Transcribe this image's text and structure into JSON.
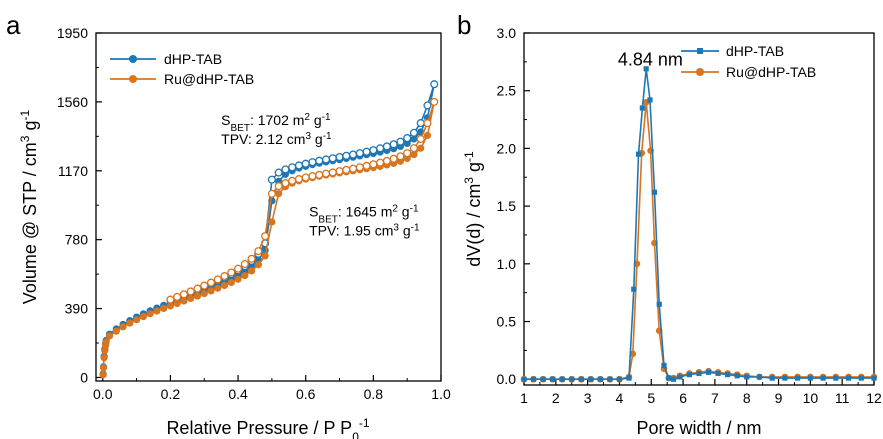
{
  "chart_data": [
    {
      "type": "line",
      "panel_label": "a",
      "xlabel": "Relative Pressure / P P",
      "xlabel_sub": "0",
      "xlabel_sup": "-1",
      "ylabel": "Volume @ STP / cm",
      "ylabel_sup1": "3",
      "ylabel_mid": " g",
      "ylabel_sup2": "-1",
      "xlim": [
        -0.02,
        1.0
      ],
      "ylim": [
        -20,
        1950
      ],
      "xticks": [
        0.0,
        0.2,
        0.4,
        0.6,
        0.8,
        1.0
      ],
      "xtick_labels": [
        "0.0",
        "0.2",
        "0.4",
        "0.6",
        "0.8",
        "1.0"
      ],
      "yticks": [
        0,
        390,
        780,
        1170,
        1560,
        1950
      ],
      "ytick_labels": [
        "0",
        "390",
        "780",
        "1170",
        "1560",
        "1950"
      ],
      "legend": {
        "placement": "top-left",
        "entries": [
          "dHP-TAB",
          "Ru@dHP-TAB"
        ]
      },
      "annotations": [
        {
          "lines": [
            "S|BET|: 1702 m|2| g|-1|",
            "TPV: 2.12 cm|3| g|-1|"
          ],
          "at": [
            0.35,
            1430
          ]
        },
        {
          "lines": [
            "S|BET|: 1645 m|2| g|-1|",
            "TPV: 1.95 cm|3| g|-1|"
          ],
          "at": [
            0.61,
            910
          ]
        }
      ],
      "series": [
        {
          "name": "dHP-TAB",
          "color": "#1f77b4",
          "adsorption": {
            "x": [
              0.001,
              0.002,
              0.004,
              0.006,
              0.008,
              0.01,
              0.02,
              0.04,
              0.06,
              0.08,
              0.1,
              0.12,
              0.14,
              0.16,
              0.18,
              0.2,
              0.22,
              0.24,
              0.26,
              0.28,
              0.3,
              0.32,
              0.34,
              0.36,
              0.38,
              0.4,
              0.42,
              0.44,
              0.46,
              0.48,
              0.5,
              0.52,
              0.54,
              0.56,
              0.58,
              0.6,
              0.62,
              0.64,
              0.66,
              0.68,
              0.7,
              0.72,
              0.74,
              0.76,
              0.78,
              0.8,
              0.82,
              0.84,
              0.86,
              0.88,
              0.9,
              0.92,
              0.94,
              0.96,
              0.98
            ],
            "y": [
              20,
              60,
              120,
              160,
              190,
              210,
              245,
              275,
              300,
              322,
              342,
              360,
              377,
              393,
              408,
              423,
              438,
              452,
              466,
              480,
              495,
              510,
              526,
              543,
              561,
              580,
              602,
              630,
              668,
              720,
              1000,
              1110,
              1150,
              1170,
              1185,
              1195,
              1205,
              1213,
              1220,
              1227,
              1233,
              1240,
              1247,
              1254,
              1261,
              1268,
              1276,
              1285,
              1295,
              1308,
              1325,
              1350,
              1390,
              1470,
              1660
            ]
          },
          "desorption": {
            "x": [
              0.98,
              0.96,
              0.94,
              0.92,
              0.9,
              0.88,
              0.86,
              0.84,
              0.82,
              0.8,
              0.78,
              0.76,
              0.74,
              0.72,
              0.7,
              0.68,
              0.66,
              0.64,
              0.62,
              0.6,
              0.58,
              0.56,
              0.54,
              0.52,
              0.5,
              0.48,
              0.46,
              0.44,
              0.42,
              0.4,
              0.38,
              0.36,
              0.34,
              0.32,
              0.3,
              0.28,
              0.26,
              0.24,
              0.22,
              0.2
            ],
            "y": [
              1660,
              1540,
              1440,
              1385,
              1355,
              1335,
              1320,
              1308,
              1297,
              1287,
              1278,
              1270,
              1262,
              1255,
              1248,
              1241,
              1234,
              1227,
              1219,
              1210,
              1200,
              1190,
              1178,
              1160,
              1120,
              760,
              700,
              660,
              630,
              606,
              585,
              566,
              548,
              531,
              515,
              499,
              484,
              469,
              454,
              440
            ]
          }
        },
        {
          "name": "Ru@dHP-TAB",
          "color": "#d9741f",
          "adsorption": {
            "x": [
              0.001,
              0.002,
              0.004,
              0.006,
              0.008,
              0.01,
              0.02,
              0.04,
              0.06,
              0.08,
              0.1,
              0.12,
              0.14,
              0.16,
              0.18,
              0.2,
              0.22,
              0.24,
              0.26,
              0.28,
              0.3,
              0.32,
              0.34,
              0.36,
              0.38,
              0.4,
              0.42,
              0.44,
              0.46,
              0.48,
              0.5,
              0.52,
              0.54,
              0.56,
              0.58,
              0.6,
              0.62,
              0.64,
              0.66,
              0.68,
              0.7,
              0.72,
              0.74,
              0.76,
              0.78,
              0.8,
              0.82,
              0.84,
              0.86,
              0.88,
              0.9,
              0.92,
              0.94,
              0.96,
              0.98
            ],
            "y": [
              15,
              55,
              112,
              152,
              180,
              200,
              235,
              262,
              287,
              308,
              327,
              345,
              361,
              376,
              391,
              405,
              419,
              433,
              447,
              461,
              475,
              490,
              505,
              521,
              538,
              556,
              577,
              603,
              638,
              688,
              880,
              1040,
              1080,
              1100,
              1113,
              1123,
              1131,
              1139,
              1146,
              1152,
              1158,
              1164,
              1170,
              1176,
              1182,
              1188,
              1195,
              1203,
              1212,
              1224,
              1240,
              1262,
              1298,
              1370,
              1560
            ]
          },
          "desorption": {
            "x": [
              0.98,
              0.96,
              0.94,
              0.92,
              0.9,
              0.88,
              0.86,
              0.84,
              0.82,
              0.8,
              0.78,
              0.76,
              0.74,
              0.72,
              0.7,
              0.68,
              0.66,
              0.64,
              0.62,
              0.6,
              0.58,
              0.56,
              0.54,
              0.52,
              0.5,
              0.48,
              0.46,
              0.44,
              0.42,
              0.4,
              0.38,
              0.36,
              0.34,
              0.32,
              0.3,
              0.28,
              0.26,
              0.24,
              0.22,
              0.2
            ],
            "y": [
              1560,
              1440,
              1350,
              1298,
              1270,
              1252,
              1238,
              1226,
              1216,
              1207,
              1198,
              1190,
              1182,
              1175,
              1168,
              1161,
              1154,
              1147,
              1140,
              1132,
              1123,
              1113,
              1100,
              1083,
              1040,
              800,
              715,
              672,
              642,
              616,
              594,
              574,
              555,
              537,
              520,
              503,
              487,
              471,
              456,
              441
            ]
          }
        }
      ]
    },
    {
      "type": "line",
      "panel_label": "b",
      "xlabel": "Pore width / nm",
      "ylabel": "dV(d) / cm",
      "ylabel_sup1": "3",
      "ylabel_mid": " g",
      "ylabel_sup2": "-1",
      "xlim": [
        1,
        12
      ],
      "ylim": [
        -0.05,
        3.0
      ],
      "xticks": [
        1,
        2,
        3,
        4,
        5,
        6,
        7,
        8,
        9,
        10,
        11,
        12
      ],
      "xtick_labels": [
        "1",
        "2",
        "3",
        "4",
        "5",
        "6",
        "7",
        "8",
        "9",
        "10",
        "11",
        "12"
      ],
      "yticks": [
        0.0,
        0.5,
        1.0,
        1.5,
        2.0,
        2.5,
        3.0
      ],
      "ytick_labels": [
        "0.0",
        "0.5",
        "1.0",
        "1.5",
        "2.0",
        "2.5",
        "3.0"
      ],
      "legend": {
        "placement": "top-right",
        "entries": [
          "dHP-TAB",
          "Ru@dHP-TAB"
        ]
      },
      "annotations": [
        {
          "text": "4.84 nm",
          "at": [
            3.95,
            2.72
          ]
        }
      ],
      "series": [
        {
          "name": "dHP-TAB",
          "color": "#1f77b4",
          "marker": "square",
          "x": [
            1.0,
            1.3,
            1.6,
            1.9,
            2.2,
            2.5,
            2.8,
            3.1,
            3.4,
            3.7,
            4.0,
            4.3,
            4.45,
            4.6,
            4.72,
            4.84,
            4.96,
            5.1,
            5.25,
            5.4,
            5.55,
            5.7,
            5.9,
            6.2,
            6.5,
            6.8,
            7.1,
            7.4,
            7.7,
            8.0,
            8.4,
            8.8,
            9.2,
            9.6,
            10.0,
            10.4,
            10.8,
            11.2,
            11.6,
            12.0
          ],
          "y": [
            0,
            0,
            0,
            0,
            0,
            0,
            0,
            0,
            0,
            0,
            0,
            0.01,
            0.78,
            1.95,
            2.35,
            2.69,
            2.42,
            1.62,
            0.65,
            0.12,
            0.01,
            0.0,
            0.02,
            0.04,
            0.05,
            0.06,
            0.05,
            0.04,
            0.03,
            0.02,
            0.02,
            0.01,
            0.01,
            0.01,
            0.01,
            0.01,
            0.01,
            0.01,
            0.01,
            0.01
          ]
        },
        {
          "name": "Ru@dHP-TAB",
          "color": "#d9741f",
          "marker": "circle",
          "x": [
            1.0,
            1.3,
            1.6,
            1.9,
            2.2,
            2.5,
            2.8,
            3.1,
            3.4,
            3.7,
            4.0,
            4.3,
            4.42,
            4.55,
            4.7,
            4.84,
            4.98,
            5.1,
            5.25,
            5.4,
            5.55,
            5.7,
            5.9,
            6.2,
            6.5,
            6.8,
            7.1,
            7.4,
            7.7,
            8.0,
            8.4,
            8.8,
            9.2,
            9.6,
            10.0,
            10.4,
            10.8,
            11.2,
            11.6,
            12.0
          ],
          "y": [
            0,
            0,
            0,
            0,
            0,
            0,
            0,
            0,
            0,
            0,
            0,
            0.02,
            0.22,
            1.0,
            1.96,
            2.4,
            1.98,
            1.18,
            0.42,
            0.09,
            0.01,
            0.01,
            0.03,
            0.05,
            0.06,
            0.07,
            0.06,
            0.05,
            0.04,
            0.03,
            0.02,
            0.02,
            0.02,
            0.02,
            0.02,
            0.02,
            0.02,
            0.02,
            0.02,
            0.02
          ]
        }
      ]
    }
  ]
}
